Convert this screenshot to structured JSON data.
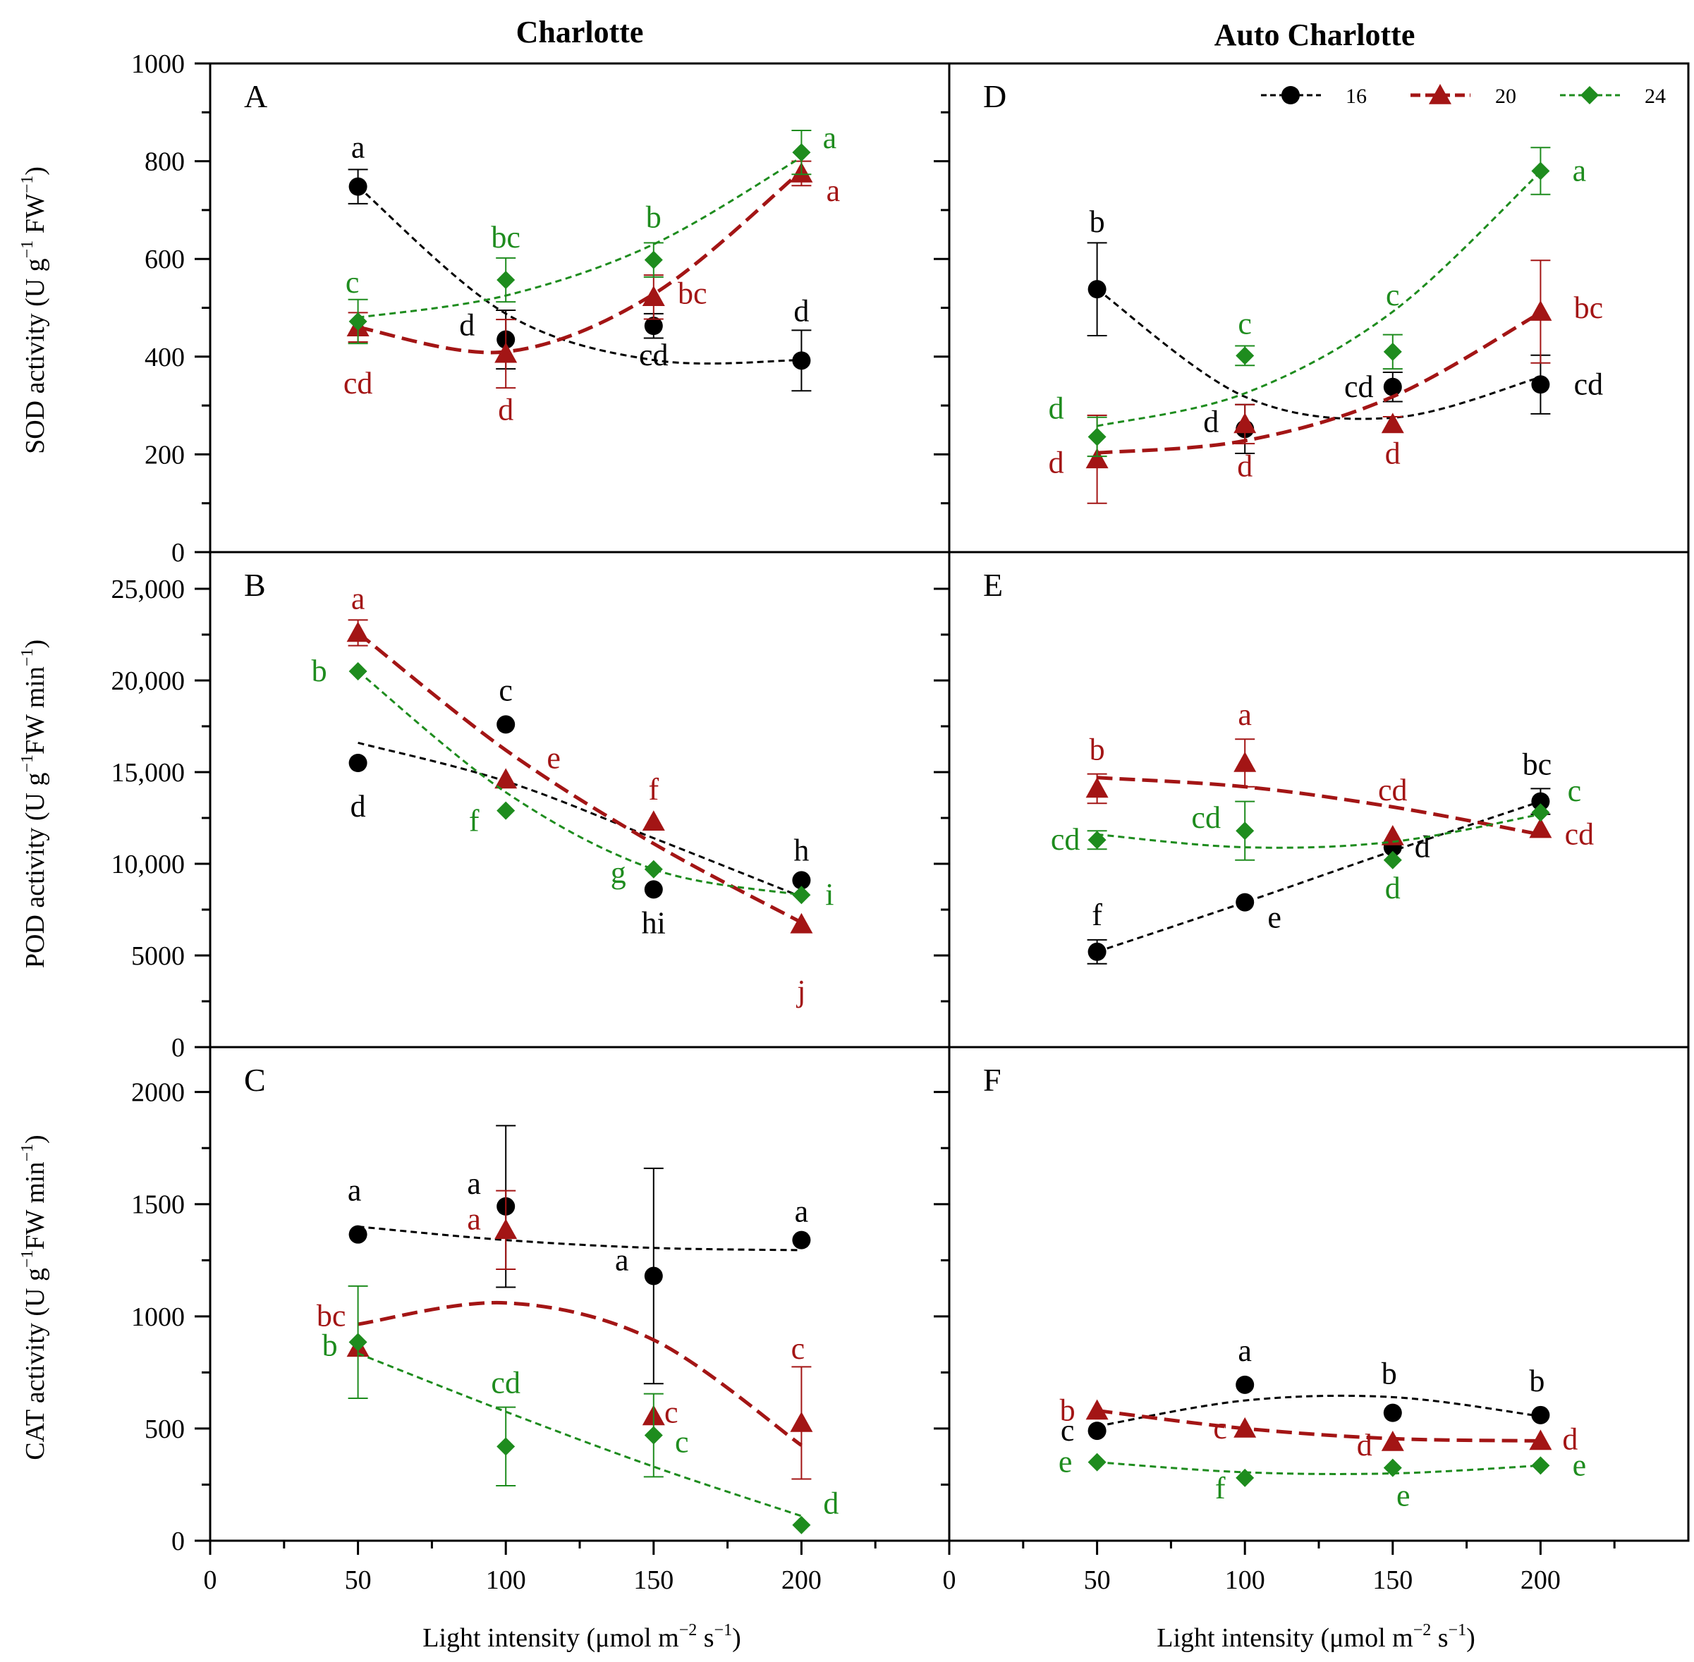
{
  "figure": {
    "col_titles": [
      "Charlotte",
      "Auto Charlotte"
    ],
    "x_axis_label": "Light intensity (μmol m⁻² s⁻¹)",
    "x_label_parts": {
      "pre": "Light intensity (μmol m",
      "sup1": "−2",
      "mid": " s",
      "sup2": "−1",
      "post": ")"
    },
    "x_ticks": [
      "0",
      "50",
      "100",
      "150",
      "200"
    ],
    "y_labels": {
      "SOD": {
        "pre": "SOD activity (U g",
        "sup": "−1",
        "post": " FW",
        "sup2": "−1",
        "post2": ")"
      },
      "POD": {
        "pre": "POD activity (U g",
        "sup": "−1",
        "post": "FW min",
        "sup2": "−1",
        "post2": ")"
      },
      "CAT": {
        "pre": "CAT activity (U g",
        "sup": "−1",
        "post": "FW min",
        "sup2": "−1",
        "post2": ")"
      }
    },
    "colors": {
      "16": "#000000",
      "20": "#a31515",
      "24": "#1e8c1e"
    }
  },
  "legend": [
    {
      "key": "16",
      "label": "16",
      "marker": "circle"
    },
    {
      "key": "20",
      "label": "20",
      "marker": "triangle"
    },
    {
      "key": "24",
      "label": "24",
      "marker": "diamond"
    }
  ],
  "chart_data": [
    {
      "id": "A",
      "type": "scatter",
      "title": "Charlotte",
      "panel": "A",
      "xlabel": "",
      "ylabel": "SOD activity",
      "xlim": [
        0,
        250
      ],
      "ylim": [
        0,
        1000
      ],
      "yticks": [
        0,
        200,
        400,
        600,
        800,
        1000
      ],
      "ytick_labels": [
        "0",
        "200",
        "400",
        "600",
        "800",
        "1000"
      ],
      "x": [
        50,
        100,
        150,
        200
      ],
      "series": [
        {
          "name": "16",
          "values": [
            748,
            435,
            463,
            392
          ],
          "errors": [
            35,
            60,
            25,
            62
          ],
          "letters": [
            "a",
            "d",
            "cd",
            "d"
          ],
          "fit": [
            748,
            488,
            393,
            393
          ]
        },
        {
          "name": "20",
          "values": [
            460,
            406,
            522,
            775
          ],
          "errors": [
            30,
            70,
            45,
            25
          ],
          "letters": [
            "cd",
            "d",
            "bc",
            "a"
          ],
          "fit": [
            460,
            410,
            528,
            780
          ]
        },
        {
          "name": "24",
          "values": [
            472,
            557,
            598,
            818
          ],
          "errors": [
            45,
            45,
            35,
            45
          ],
          "letters": [
            "c",
            "bc",
            "b",
            "a"
          ],
          "fit": [
            480,
            525,
            630,
            808
          ]
        }
      ]
    },
    {
      "id": "D",
      "type": "scatter",
      "title": "Auto Charlotte",
      "panel": "D",
      "xlabel": "",
      "ylabel": "",
      "xlim": [
        0,
        250
      ],
      "ylim": [
        0,
        1000
      ],
      "yticks": [
        0,
        200,
        400,
        600,
        800,
        1000
      ],
      "ytick_labels": [
        "",
        "",
        "",
        "",
        "",
        ""
      ],
      "x": [
        50,
        100,
        150,
        200
      ],
      "series": [
        {
          "name": "16",
          "values": [
            538,
            252,
            338,
            343
          ],
          "errors": [
            95,
            50,
            30,
            60
          ],
          "letters": [
            "b",
            "d",
            "cd",
            "cd"
          ],
          "fit": [
            538,
            318,
            275,
            358
          ]
        },
        {
          "name": "20",
          "values": [
            190,
            262,
            262,
            492
          ],
          "errors": [
            90,
            40,
            15,
            105
          ],
          "letters": [
            "d",
            "d",
            "d",
            "bc"
          ],
          "fit": [
            203,
            228,
            318,
            490
          ]
        },
        {
          "name": "24",
          "values": [
            236,
            402,
            410,
            780
          ],
          "errors": [
            40,
            20,
            35,
            48
          ],
          "letters": [
            "d",
            "c",
            "c",
            "a"
          ],
          "fit": [
            258,
            325,
            492,
            778
          ]
        }
      ]
    },
    {
      "id": "B",
      "type": "scatter",
      "title": "",
      "panel": "B",
      "xlabel": "",
      "ylabel": "POD activity",
      "xlim": [
        0,
        250
      ],
      "ylim": [
        0,
        27000
      ],
      "yticks": [
        0,
        5000,
        10000,
        15000,
        20000,
        25000
      ],
      "ytick_labels": [
        "0",
        "5000",
        "10,000",
        "15,000",
        "20,000",
        "25,000"
      ],
      "x": [
        50,
        100,
        150,
        200
      ],
      "series": [
        {
          "name": "16",
          "values": [
            15500,
            17600,
            8600,
            9100
          ],
          "errors": [
            0,
            0,
            0,
            0
          ],
          "letters": [
            "d",
            "c",
            "hi",
            "h"
          ],
          "fit": [
            16600,
            14500,
            11400,
            8200
          ]
        },
        {
          "name": "20",
          "values": [
            22600,
            14600,
            12300,
            6700
          ],
          "errors": [
            700,
            0,
            0,
            0
          ],
          "letters": [
            "a",
            "e",
            "f",
            "j"
          ],
          "fit": [
            22600,
            16200,
            11100,
            6800
          ]
        },
        {
          "name": "24",
          "values": [
            20500,
            12900,
            9700,
            8300
          ],
          "errors": [
            0,
            0,
            0,
            0
          ],
          "letters": [
            "b",
            "f",
            "g",
            "i"
          ],
          "fit": [
            20500,
            13900,
            9700,
            8300
          ]
        }
      ]
    },
    {
      "id": "E",
      "type": "scatter",
      "title": "",
      "panel": "E",
      "xlabel": "",
      "ylabel": "",
      "xlim": [
        0,
        250
      ],
      "ylim": [
        0,
        27000
      ],
      "yticks": [
        0,
        5000,
        10000,
        15000,
        20000,
        25000
      ],
      "ytick_labels": [
        "",
        "",
        "",
        "",
        "",
        ""
      ],
      "x": [
        50,
        100,
        150,
        200
      ],
      "series": [
        {
          "name": "16",
          "values": [
            5200,
            7900,
            10900,
            13400
          ],
          "errors": [
            650,
            0,
            0,
            700
          ],
          "letters": [
            "f",
            "e",
            "d",
            "bc"
          ],
          "fit": [
            5200,
            7900,
            10700,
            13400
          ]
        },
        {
          "name": "20",
          "values": [
            14100,
            15500,
            11500,
            11900
          ],
          "errors": [
            800,
            1300,
            0,
            0
          ],
          "letters": [
            "b",
            "a",
            "cd",
            "cd"
          ],
          "fit": [
            14700,
            14200,
            13100,
            11600
          ]
        },
        {
          "name": "24",
          "values": [
            11300,
            11800,
            10200,
            12800
          ],
          "errors": [
            500,
            1600,
            0,
            0
          ],
          "letters": [
            "cd",
            "cd",
            "d",
            "c"
          ],
          "fit": [
            11600,
            10900,
            11200,
            12700
          ]
        }
      ]
    },
    {
      "id": "C",
      "type": "scatter",
      "title": "",
      "panel": "C",
      "xlabel": "Light intensity",
      "ylabel": "CAT activity",
      "xlim": [
        0,
        250
      ],
      "ylim": [
        0,
        2200
      ],
      "yticks": [
        0,
        500,
        1000,
        1500,
        2000
      ],
      "ytick_labels": [
        "0",
        "500",
        "1000",
        "1500",
        "2000"
      ],
      "x": [
        50,
        100,
        150,
        200
      ],
      "series": [
        {
          "name": "16",
          "values": [
            1365,
            1490,
            1180,
            1340
          ],
          "errors": [
            0,
            360,
            480,
            0
          ],
          "letters": [
            "a",
            "a",
            "a",
            "a"
          ],
          "fit": [
            1400,
            1340,
            1305,
            1295
          ]
        },
        {
          "name": "20",
          "values": [
            860,
            1385,
            555,
            525
          ],
          "errors": [
            0,
            175,
            0,
            250
          ],
          "letters": [
            "bc",
            "a",
            "c",
            "c"
          ],
          "fit": [
            965,
            1060,
            895,
            425
          ]
        },
        {
          "name": "24",
          "values": [
            885,
            420,
            470,
            70
          ],
          "errors": [
            250,
            175,
            185,
            0
          ],
          "letters": [
            "b",
            "cd",
            "c",
            "d"
          ],
          "fit": [
            835,
            575,
            330,
            110
          ]
        }
      ]
    },
    {
      "id": "F",
      "type": "scatter",
      "title": "",
      "panel": "F",
      "xlabel": "Light intensity",
      "ylabel": "",
      "xlim": [
        0,
        250
      ],
      "ylim": [
        0,
        2200
      ],
      "yticks": [
        0,
        500,
        1000,
        1500,
        2000
      ],
      "ytick_labels": [
        "",
        "",
        "",
        "",
        ""
      ],
      "x": [
        50,
        100,
        150,
        200
      ],
      "series": [
        {
          "name": "16",
          "values": [
            490,
            695,
            570,
            560
          ],
          "errors": [
            0,
            0,
            0,
            0
          ],
          "letters": [
            "c",
            "a",
            "b",
            "b"
          ],
          "fit": [
            510,
            625,
            640,
            555
          ]
        },
        {
          "name": "20",
          "values": [
            580,
            500,
            440,
            445
          ],
          "errors": [
            0,
            0,
            0,
            0
          ],
          "letters": [
            "b",
            "c",
            "d",
            "d"
          ],
          "fit": [
            580,
            500,
            455,
            445
          ]
        },
        {
          "name": "24",
          "values": [
            350,
            280,
            325,
            335
          ],
          "errors": [
            0,
            0,
            0,
            0
          ],
          "letters": [
            "e",
            "f",
            "e",
            "e"
          ],
          "fit": [
            350,
            305,
            300,
            335
          ]
        }
      ]
    }
  ]
}
